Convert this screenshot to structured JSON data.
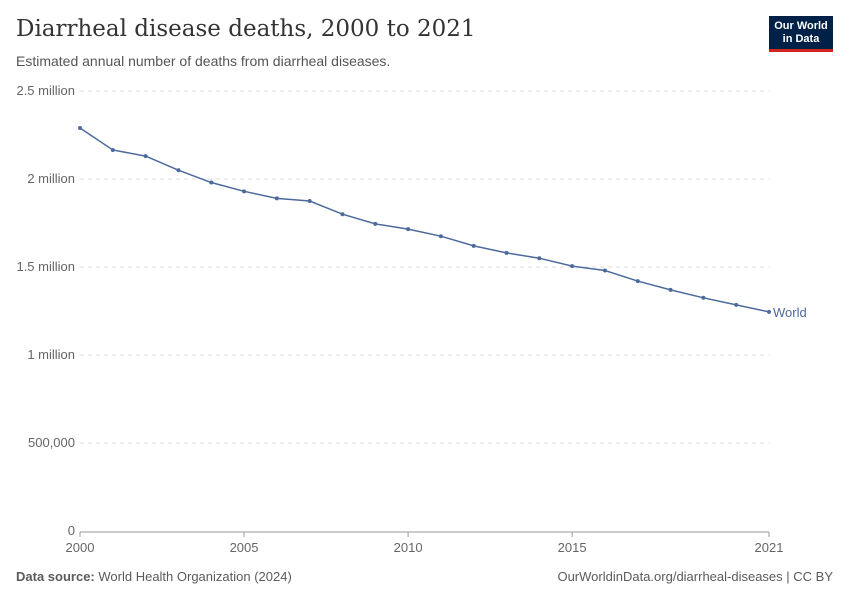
{
  "header": {
    "title": "Diarrheal disease deaths, 2000 to 2021",
    "subtitle": "Estimated annual number of deaths from diarrheal diseases.",
    "logo": "Our World in Data"
  },
  "footer": {
    "source_label": "Data source:",
    "source": "World Health Organization (2024)",
    "url": "OurWorldinData.org/diarrheal-diseases | CC BY"
  },
  "chart_data": {
    "type": "line",
    "title": "Diarrheal disease deaths, 2000 to 2021",
    "xlabel": "",
    "ylabel": "",
    "xlim": [
      2000,
      2021
    ],
    "ylim": [
      0,
      2500000
    ],
    "grid": "horizontal dashed",
    "legend": "end-label",
    "x_ticks": [
      {
        "v": 2000,
        "label": "2000"
      },
      {
        "v": 2005,
        "label": "2005"
      },
      {
        "v": 2010,
        "label": "2010"
      },
      {
        "v": 2015,
        "label": "2015"
      },
      {
        "v": 2021,
        "label": "2021"
      }
    ],
    "y_ticks": [
      {
        "v": 0,
        "label": "0"
      },
      {
        "v": 500000,
        "label": "500,000"
      },
      {
        "v": 1000000,
        "label": "1 million"
      },
      {
        "v": 1500000,
        "label": "1.5 million"
      },
      {
        "v": 2000000,
        "label": "2 million"
      },
      {
        "v": 2500000,
        "label": "2.5 million"
      }
    ],
    "series": [
      {
        "name": "World",
        "color": "#4c6a9c",
        "x": [
          2000,
          2001,
          2002,
          2003,
          2004,
          2005,
          2006,
          2007,
          2008,
          2009,
          2010,
          2011,
          2012,
          2013,
          2014,
          2015,
          2016,
          2017,
          2018,
          2019,
          2020,
          2021
        ],
        "values": [
          2290000,
          2165000,
          2130000,
          2050000,
          1980000,
          1930000,
          1890000,
          1875000,
          1800000,
          1745000,
          1715000,
          1675000,
          1620000,
          1580000,
          1550000,
          1505000,
          1480000,
          1420000,
          1370000,
          1325000,
          1285000,
          1245000
        ]
      }
    ]
  }
}
